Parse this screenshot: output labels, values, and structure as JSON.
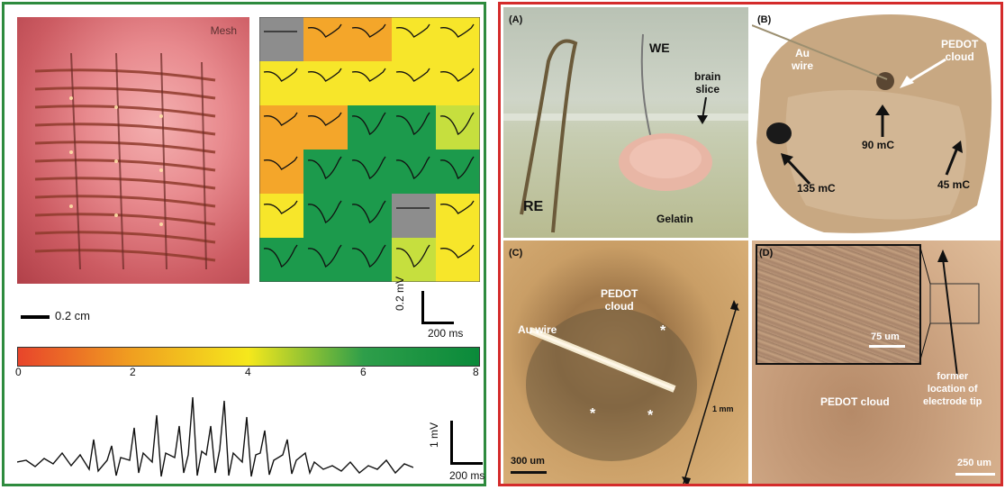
{
  "left_panel": {
    "mesh_label": "Mesh",
    "scale_bar_label": "0.2 cm",
    "grid_scale": {
      "voltage": "0.2 mV",
      "time": "200 ms"
    },
    "colorbar": {
      "ticks": [
        "0",
        "2",
        "4",
        "6",
        "8"
      ],
      "colors": [
        "#e8452b",
        "#f0a020",
        "#f5e81c",
        "#2e9e4a",
        "#0a8a3a"
      ]
    },
    "trace_scale": {
      "voltage": "1 mV",
      "time": "200 ms"
    },
    "grid_cells": [
      [
        "#8d8d8d",
        "#f4a62a",
        "#f4a62a",
        "#f7e62a",
        "#f7e62a"
      ],
      [
        "#f7e62a",
        "#f7e62a",
        "#f7e62a",
        "#f7e62a",
        "#f7e62a"
      ],
      [
        "#f4a62a",
        "#f4a62a",
        "#1c9a4c",
        "#1c9a4c",
        "#c6df3e"
      ],
      [
        "#f4a62a",
        "#1c9a4c",
        "#1c9a4c",
        "#1c9a4c",
        "#1c9a4c"
      ],
      [
        "#f7e62a",
        "#1c9a4c",
        "#1c9a4c",
        "#8d8d8d",
        "#f7e62a"
      ],
      [
        "#1c9a4c",
        "#1c9a4c",
        "#1c9a4c",
        "#c6df3e",
        "#f7e62a"
      ]
    ]
  },
  "right_panel": {
    "panel_a": {
      "tag": "(A)",
      "we": "WE",
      "brain_slice": "brain\nslice",
      "re": "RE",
      "gelatin": "Gelatin"
    },
    "panel_b": {
      "tag": "(B)",
      "au_wire": "Au\nwire",
      "pedot_cloud": "PEDOT\ncloud",
      "mc90": "90 mC",
      "mc135": "135 mC",
      "mc45": "45 mC"
    },
    "panel_c": {
      "tag": "(C)",
      "pedot_cloud": "PEDOT\ncloud",
      "au_wire": "Au wire",
      "mm": "1 mm",
      "scale": "300 um"
    },
    "panel_d": {
      "tag": "(D)",
      "inset_scale": "75 um",
      "pedot_cloud": "PEDOT cloud",
      "former": "former\nlocation of\nelectrode tip",
      "scale": "250 um"
    }
  }
}
